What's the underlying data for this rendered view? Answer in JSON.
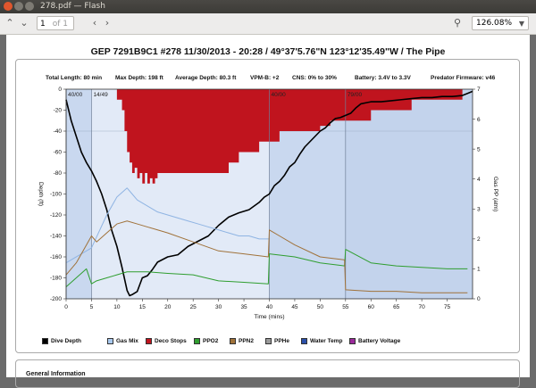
{
  "window": {
    "title": "278.pdf — Flash"
  },
  "toolbar": {
    "page_current": "1",
    "page_of": "of 1",
    "zoom": "126.08%"
  },
  "doc": {
    "title": "GEP 7291B9C1 #278 11/30/2013 - 20:28  / 49°37'5.76\"N 123°12'35.49\"W / The Pipe",
    "stats": {
      "total_length": "Total Length: 80 min",
      "max_depth": "Max Depth: 198 ft",
      "avg_depth": "Average Depth: 80.3 ft",
      "vpm": "VPM-B: +2",
      "cns": "CNS: 0% to 30%",
      "battery": "Battery: 3.4V to 3.3V",
      "firmware": "Predator Firmware: v46"
    },
    "general_info": "General Information"
  },
  "chart_data": {
    "type": "line",
    "xlabel": "Time (mins)",
    "ylabel": "Depth (ft)",
    "y2label": "Gas PP (atm)",
    "xlim": [
      0,
      80
    ],
    "ylim": [
      -200,
      0
    ],
    "y2lim": [
      0,
      7
    ],
    "x_ticks": [
      0,
      5,
      10,
      15,
      20,
      25,
      30,
      35,
      40,
      45,
      50,
      55,
      60,
      65,
      70,
      75
    ],
    "y_ticks": [
      0,
      -20,
      -40,
      -60,
      -80,
      -100,
      -120,
      -140,
      -160,
      -180,
      -200
    ],
    "y2_ticks": [
      0,
      1,
      2,
      3,
      4,
      5,
      6,
      7
    ],
    "gas_switches": [
      {
        "x": 0,
        "label": "40/00"
      },
      {
        "x": 5,
        "label": "14/49"
      },
      {
        "x": 40,
        "label": "40/00"
      },
      {
        "x": 55,
        "label": "79/00"
      }
    ],
    "series": [
      {
        "name": "Dive Depth",
        "color": "#000000",
        "axis": "depth",
        "x": [
          0,
          1,
          2,
          3,
          4,
          5,
          6,
          7,
          8,
          9,
          10,
          11,
          12,
          12.5,
          13,
          14,
          15,
          16,
          17,
          18,
          20,
          22,
          24,
          26,
          28,
          30,
          32,
          34,
          36,
          38,
          39,
          40,
          41,
          42,
          43,
          44,
          45,
          46,
          47,
          48,
          49,
          50,
          51,
          52,
          53,
          54,
          55,
          56,
          57,
          58,
          59,
          60,
          62,
          64,
          66,
          68,
          70,
          72,
          74,
          76,
          78,
          79,
          80
        ],
        "y": [
          -10,
          -30,
          -45,
          -60,
          -70,
          -78,
          -88,
          -100,
          -115,
          -135,
          -150,
          -170,
          -192,
          -197,
          -196,
          -193,
          -180,
          -178,
          -172,
          -165,
          -160,
          -158,
          -150,
          -145,
          -140,
          -130,
          -122,
          -118,
          -115,
          -108,
          -103,
          -100,
          -92,
          -88,
          -82,
          -74,
          -70,
          -62,
          -55,
          -50,
          -45,
          -40,
          -37,
          -32,
          -28,
          -27,
          -25,
          -23,
          -18,
          -14,
          -13,
          -12,
          -12,
          -11,
          -10,
          -9,
          -8,
          -8,
          -7,
          -7,
          -6,
          -4,
          -2
        ]
      },
      {
        "name": "Gas Mix",
        "color": "#8fb4e3",
        "axis": "pp",
        "x": [
          0,
          5,
          8,
          10,
          12,
          13,
          14,
          16,
          18,
          20,
          22,
          24,
          26,
          28,
          30,
          32,
          34,
          36,
          38,
          40
        ],
        "y": [
          1.2,
          1.7,
          2.8,
          3.4,
          3.7,
          3.5,
          3.3,
          3.1,
          2.9,
          2.8,
          2.7,
          2.6,
          2.5,
          2.4,
          2.3,
          2.2,
          2.1,
          2.1,
          2.0,
          2.0
        ]
      },
      {
        "name": "PPO2",
        "color": "#2f9e2f",
        "axis": "pp",
        "x": [
          0,
          2,
          4,
          5,
          6,
          8,
          10,
          12,
          14,
          16,
          20,
          25,
          30,
          35,
          39.8,
          40,
          45,
          50,
          54.8,
          55,
          60,
          65,
          70,
          75,
          79
        ],
        "y": [
          0.4,
          0.7,
          1.0,
          0.5,
          0.6,
          0.7,
          0.8,
          0.9,
          0.9,
          0.9,
          0.85,
          0.8,
          0.6,
          0.55,
          0.5,
          1.5,
          1.4,
          1.2,
          1.1,
          1.65,
          1.2,
          1.1,
          1.05,
          1.0,
          1.0
        ]
      },
      {
        "name": "PPN2",
        "color": "#a0723a",
        "axis": "pp",
        "x": [
          0,
          2,
          4,
          5,
          6,
          8,
          10,
          12,
          14,
          16,
          18,
          20,
          25,
          30,
          35,
          39.8,
          40,
          42,
          45,
          50,
          54.8,
          55,
          60,
          65,
          70,
          75,
          79
        ],
        "y": [
          0.8,
          1.2,
          1.8,
          2.1,
          1.9,
          2.2,
          2.5,
          2.6,
          2.5,
          2.4,
          2.3,
          2.2,
          1.9,
          1.6,
          1.5,
          1.4,
          2.3,
          2.1,
          1.8,
          1.4,
          1.3,
          0.3,
          0.25,
          0.25,
          0.2,
          0.2,
          0.2
        ]
      }
    ],
    "deco_stops": {
      "name": "Deco Stops",
      "color": "#c0141e",
      "x": [
        10,
        11,
        11.5,
        12,
        12.5,
        13,
        13.5,
        14,
        14.5,
        15,
        15.5,
        16,
        16.5,
        17,
        17.5,
        18,
        19,
        20,
        22,
        24,
        26,
        28,
        30,
        32,
        34,
        36,
        38,
        40,
        42,
        44,
        46,
        48,
        50,
        52,
        54,
        56,
        58,
        60,
        62,
        64,
        66,
        68,
        70,
        72,
        74,
        76,
        78
      ],
      "y": [
        -10,
        -20,
        -40,
        -60,
        -70,
        -80,
        -75,
        -85,
        -80,
        -90,
        -80,
        -90,
        -85,
        -90,
        -85,
        -80,
        -80,
        -80,
        -80,
        -80,
        -80,
        -80,
        -80,
        -70,
        -60,
        -60,
        -50,
        -50,
        -40,
        -40,
        -40,
        -40,
        -35,
        -30,
        -30,
        -30,
        -30,
        -20,
        -20,
        -20,
        -20,
        -10,
        -10,
        -10,
        -10,
        -10,
        0
      ]
    },
    "legend": [
      {
        "name": "Dive Depth",
        "color": "#000000"
      },
      {
        "name": "Gas Mix",
        "color": "#a9c9ef"
      },
      {
        "name": "Deco Stops",
        "color": "#c0141e"
      },
      {
        "name": "PPO2",
        "color": "#2f9e2f"
      },
      {
        "name": "PPN2",
        "color": "#a0723a"
      },
      {
        "name": "PPHe",
        "color": "#9a9a9a"
      },
      {
        "name": "Water Temp",
        "color": "#2b4fa8"
      },
      {
        "name": "Battery Voltage",
        "color": "#9b2a9b"
      }
    ]
  }
}
